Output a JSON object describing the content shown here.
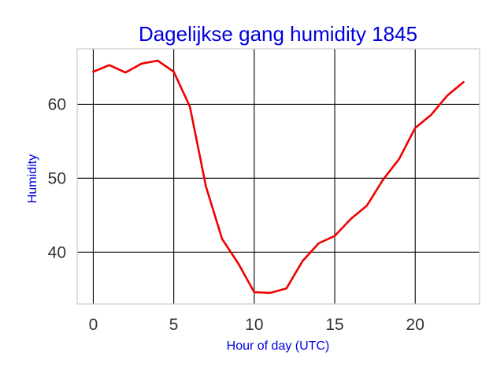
{
  "chart_data": {
    "type": "line",
    "title": "Dagelijkse gang humidity 1845",
    "xlabel": "Hour of day (UTC)",
    "ylabel": "Humidity",
    "xlim": [
      -1,
      24
    ],
    "ylim": [
      33,
      67.5
    ],
    "xticks": [
      0,
      5,
      10,
      15,
      20
    ],
    "yticks": [
      40,
      50,
      60
    ],
    "grid": true,
    "series": [
      {
        "color": "#ee0000",
        "x": [
          0,
          1,
          2,
          3,
          4,
          5,
          6,
          7,
          8,
          9,
          10,
          11,
          12,
          13,
          14,
          15,
          16,
          17,
          18,
          19,
          20,
          21,
          22,
          23
        ],
        "y": [
          64.4,
          65.3,
          64.3,
          65.5,
          65.9,
          64.4,
          59.7,
          48.9,
          41.8,
          38.5,
          34.6,
          34.5,
          35.1,
          38.8,
          41.2,
          42.2,
          44.5,
          46.3,
          49.8,
          52.6,
          56.8,
          58.6,
          61.2,
          63.0
        ]
      }
    ]
  }
}
